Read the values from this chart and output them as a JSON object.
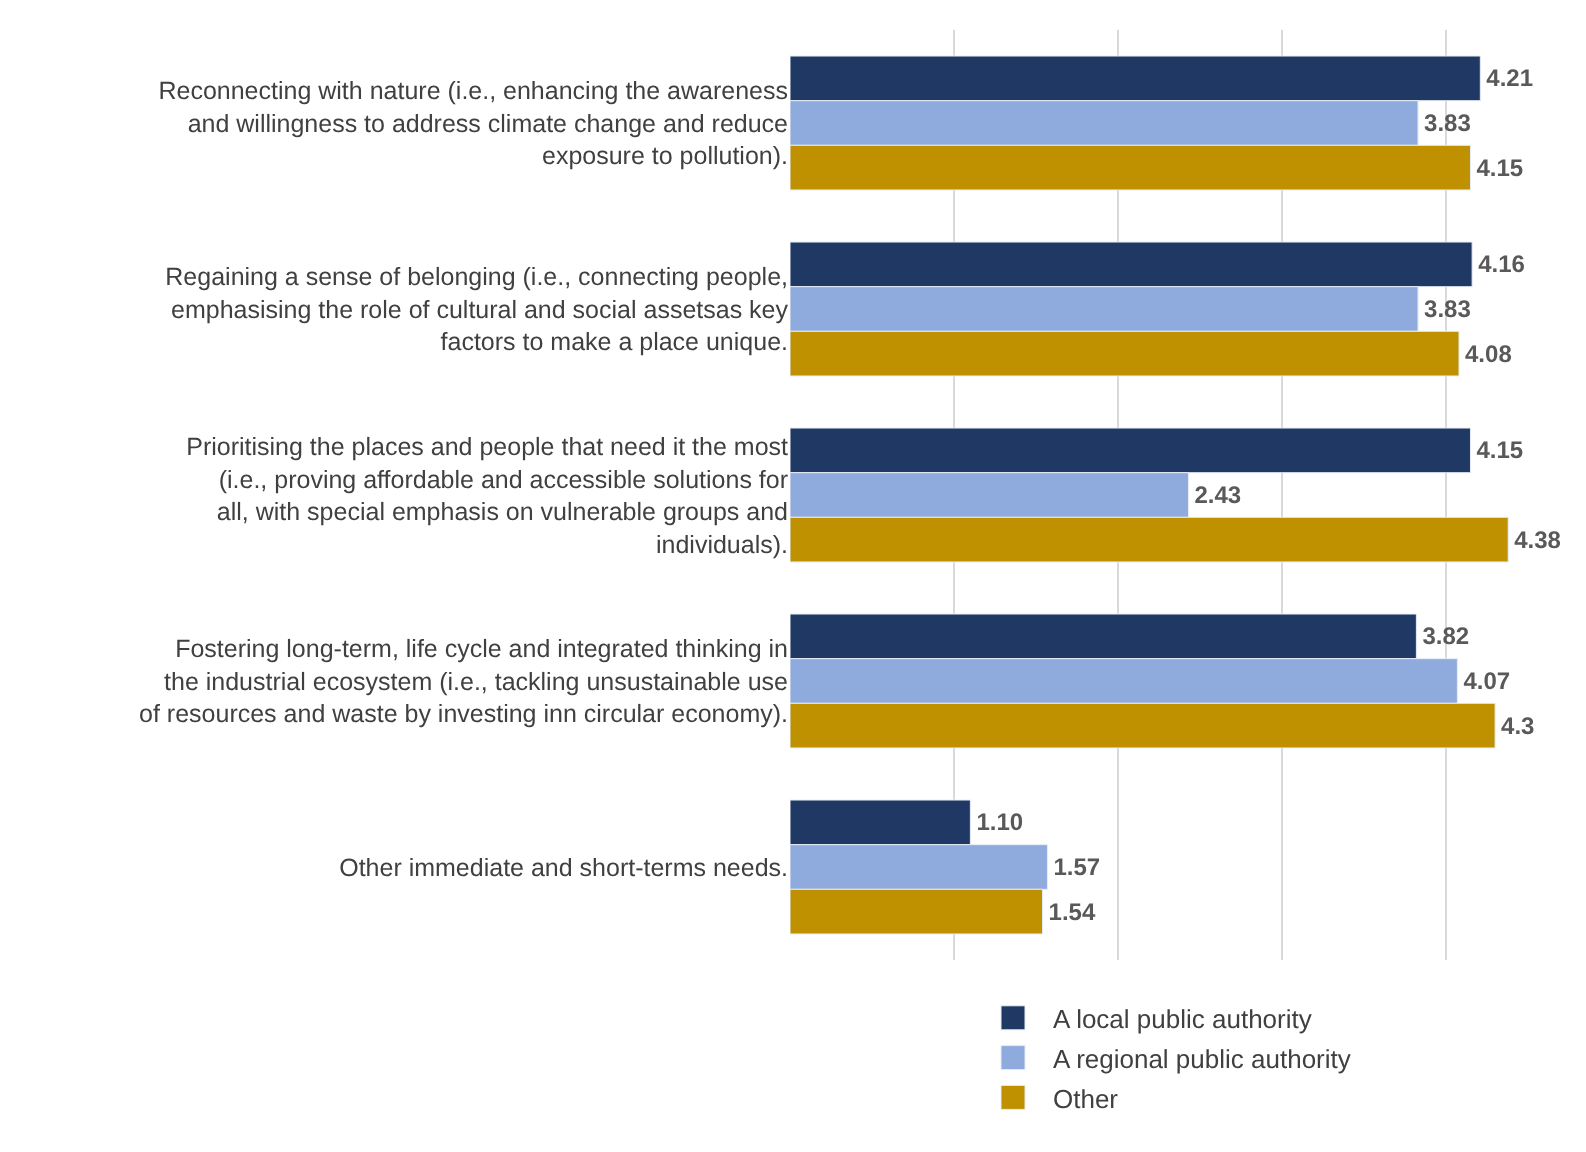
{
  "chart_data": {
    "type": "bar",
    "orientation": "horizontal",
    "categories": [
      "Reconnecting with nature (i.e., enhancing the awareness and willingness to address climate change and reduce exposure to pollution).",
      "Regaining a sense of belonging (i.e., connecting people, emphasising the role of cultural and social assetsas key factors to make a place unique.",
      "Prioritising the places and people that need it the most (i.e., proving affordable and accessible solutions for all, with special emphasis on vulnerable groups and individuals).",
      "Fostering long-term, life cycle and integrated thinking in the industrial ecosystem (i.e., tackling unsustainable use of resources and waste by investing inn circular economy).",
      "Other immediate and short-terms needs."
    ],
    "series": [
      {
        "name": "A local public authority",
        "color": "#203864",
        "values": [
          4.21,
          4.16,
          4.15,
          3.82,
          1.1
        ],
        "value_labels": [
          "4.21",
          "4.16",
          "4.15",
          "3.82",
          "1.10"
        ]
      },
      {
        "name": "A regional public authority",
        "color": "#8faadc",
        "values": [
          3.83,
          3.83,
          2.43,
          4.07,
          1.57
        ],
        "value_labels": [
          "3.83",
          "3.83",
          "2.43",
          "4.07",
          "1.57"
        ]
      },
      {
        "name": "Other",
        "color": "#bf9000",
        "values": [
          4.15,
          4.08,
          4.38,
          4.3,
          1.54
        ],
        "value_labels": [
          "4.15",
          "4.08",
          "4.38",
          "4.3",
          "1.54"
        ]
      }
    ],
    "grid": "x",
    "legend": "bottom",
    "tick_labels": "y"
  }
}
